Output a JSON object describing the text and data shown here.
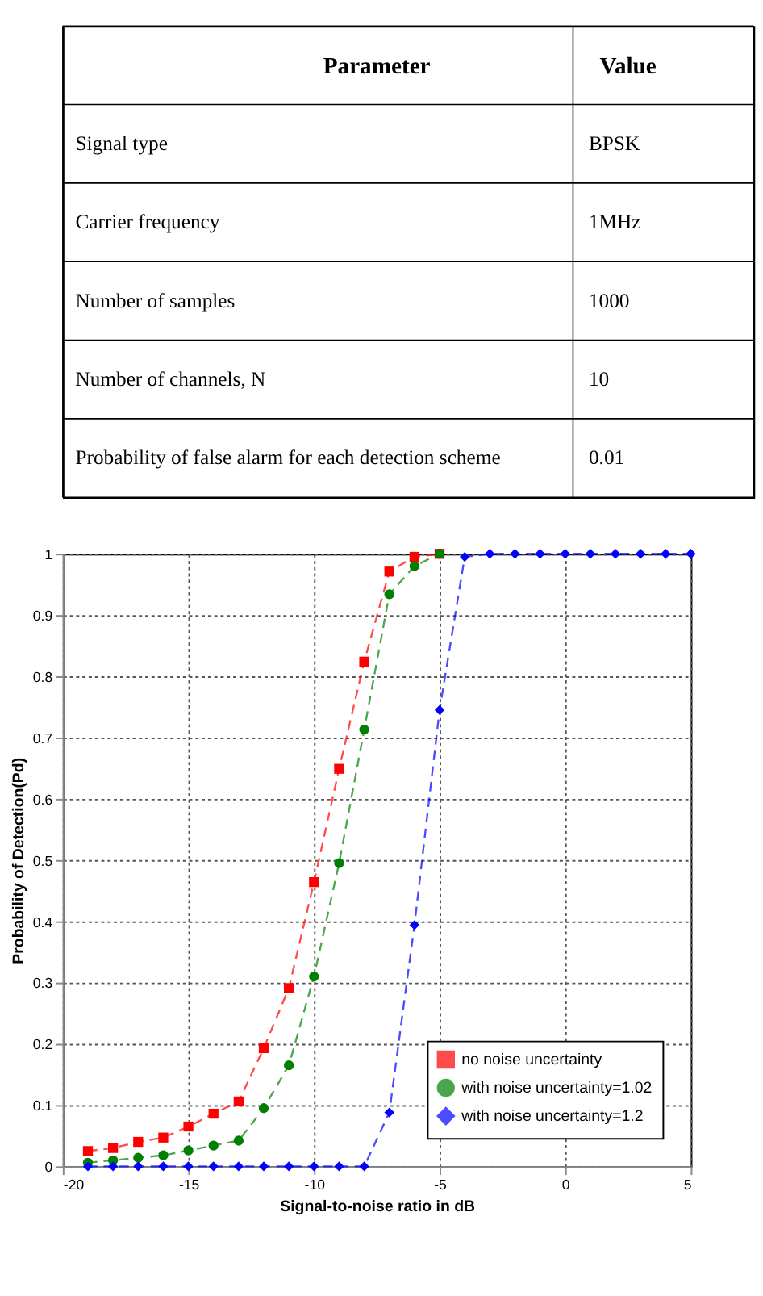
{
  "chart_data": [
    {
      "type": "other",
      "annotations": [
        "Parameter",
        "Value",
        "Signal type",
        "BPSK",
        "Carrier frequency",
        "1MHz",
        "Number of samples",
        "1000",
        "Number of channels, N",
        "10",
        "Probability of false alarm for each detection scheme",
        "0.01"
      ]
    },
    {
      "type": "line",
      "xlabel": "Signal-to-noise ratio in dB",
      "ylabel": "Probability of Detection(Pd)",
      "xlim": [
        -20,
        5
      ],
      "xticks": [
        -20,
        -15,
        -10,
        -5,
        0,
        5
      ],
      "ylim": [
        0,
        1
      ],
      "yticks": [
        0,
        0.1,
        0.2,
        0.3,
        0.4,
        0.5,
        0.6,
        0.7,
        0.8,
        0.9,
        1
      ],
      "grid": true,
      "legend": "bottom right",
      "line_style": "dashed",
      "series": [
        {
          "name": "no noise uncertainty",
          "color": "#ff0000",
          "marker": "square",
          "x": [
            -19,
            -18,
            -17,
            -16,
            -15,
            -14,
            -13,
            -12,
            -11,
            -10,
            -9,
            -8,
            -7,
            -6,
            -5
          ],
          "values": [
            0.025,
            0.03,
            0.04,
            0.047,
            0.065,
            0.086,
            0.106,
            0.193,
            0.291,
            0.464,
            0.649,
            0.824,
            0.971,
            0.995,
            1.0
          ]
        },
        {
          "name": "with noise uncertainty=1.02",
          "color": "#008000",
          "marker": "circle",
          "x": [
            -19,
            -18,
            -17,
            -16,
            -15,
            -14,
            -13,
            -12,
            -11,
            -10,
            -9,
            -8,
            -7,
            -6,
            -5
          ],
          "values": [
            0.006,
            0.01,
            0.014,
            0.018,
            0.026,
            0.034,
            0.042,
            0.095,
            0.165,
            0.31,
            0.495,
            0.713,
            0.934,
            0.98,
            1.0
          ]
        },
        {
          "name": "with noise uncertainty=1.2",
          "color": "#0000ff",
          "marker": "diamond",
          "x": [
            -19,
            -18,
            -17,
            -16,
            -15,
            -14,
            -13,
            -12,
            -11,
            -10,
            -9,
            -8,
            -7,
            -6,
            -5,
            -4,
            -3,
            -2,
            -1,
            0,
            1,
            2,
            3,
            4,
            5
          ],
          "values": [
            0,
            0,
            0,
            0,
            0,
            0,
            0,
            0,
            0,
            0,
            0,
            0,
            0.088,
            0.394,
            0.745,
            0.995,
            1.0,
            1.0,
            1.0,
            1.0,
            1.0,
            1.0,
            1.0,
            1.0,
            1.0
          ]
        }
      ]
    }
  ]
}
